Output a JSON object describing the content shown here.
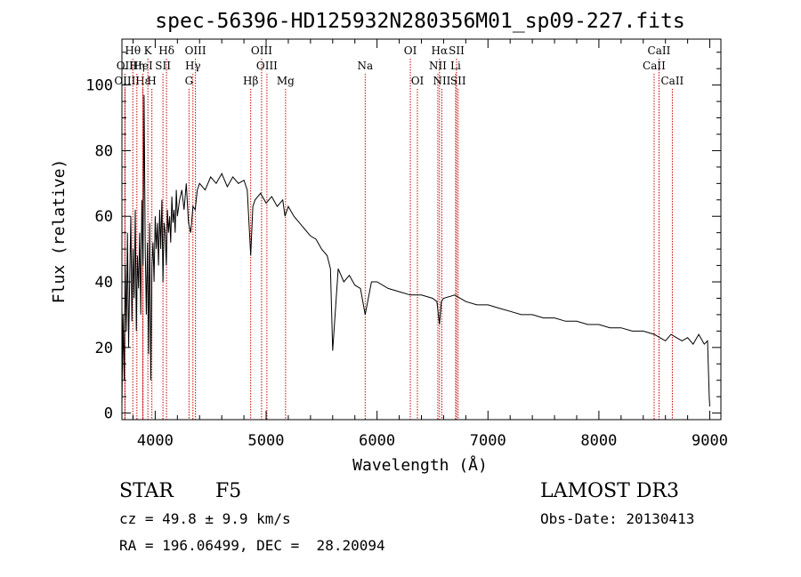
{
  "chart_data": {
    "type": "line",
    "title": "spec-56396-HD125932N280356M01_sp09-227.fits",
    "xlabel": "Wavelength (Å)",
    "ylabel": "Flux (relative)",
    "xlim": [
      3700,
      9100
    ],
    "ylim": [
      -2,
      114
    ],
    "xticks": [
      4000,
      5000,
      6000,
      7000,
      8000,
      9000
    ],
    "yticks": [
      0,
      20,
      40,
      60,
      80,
      100
    ],
    "grid": false,
    "series": [
      {
        "name": "flux",
        "color": "#000000",
        "x": [
          3700,
          3710,
          3720,
          3730,
          3740,
          3750,
          3760,
          3770,
          3780,
          3790,
          3800,
          3810,
          3820,
          3830,
          3840,
          3850,
          3860,
          3870,
          3880,
          3890,
          3900,
          3910,
          3920,
          3930,
          3940,
          3950,
          3960,
          3970,
          3980,
          3990,
          4000,
          4010,
          4020,
          4030,
          4040,
          4050,
          4060,
          4070,
          4080,
          4090,
          4100,
          4110,
          4120,
          4130,
          4140,
          4150,
          4160,
          4170,
          4180,
          4190,
          4200,
          4220,
          4240,
          4260,
          4280,
          4300,
          4320,
          4340,
          4360,
          4380,
          4400,
          4450,
          4500,
          4550,
          4600,
          4650,
          4700,
          4750,
          4800,
          4830,
          4861,
          4880,
          4900,
          4950,
          5000,
          5050,
          5100,
          5150,
          5170,
          5200,
          5250,
          5300,
          5350,
          5400,
          5450,
          5500,
          5550,
          5580,
          5600,
          5650,
          5700,
          5750,
          5800,
          5850,
          5893,
          5950,
          6000,
          6100,
          6200,
          6300,
          6400,
          6500,
          6540,
          6563,
          6580,
          6600,
          6700,
          6800,
          6900,
          7000,
          7100,
          7200,
          7300,
          7400,
          7500,
          7600,
          7700,
          7800,
          7900,
          8000,
          8100,
          8200,
          8300,
          8400,
          8500,
          8550,
          8600,
          8650,
          8700,
          8750,
          8800,
          8850,
          8900,
          8950,
          8980,
          8995,
          9000
        ],
        "values": [
          2,
          30,
          10,
          45,
          25,
          55,
          20,
          40,
          60,
          28,
          50,
          35,
          62,
          25,
          48,
          38,
          55,
          30,
          65,
          45,
          97,
          50,
          30,
          52,
          18,
          58,
          10,
          45,
          52,
          40,
          60,
          50,
          58,
          45,
          62,
          50,
          65,
          40,
          58,
          55,
          45,
          62,
          55,
          60,
          52,
          66,
          58,
          62,
          55,
          68,
          60,
          65,
          68,
          62,
          70,
          58,
          55,
          63,
          62,
          68,
          70,
          68,
          72,
          70,
          73,
          69,
          72,
          70,
          71,
          68,
          48,
          63,
          65,
          67,
          64,
          66,
          63,
          65,
          60,
          63,
          60,
          58,
          56,
          54,
          53,
          50,
          48,
          44,
          19,
          44,
          40,
          42,
          39,
          38,
          30,
          40,
          40,
          38,
          37,
          36,
          36,
          35,
          34,
          27,
          34,
          35,
          36,
          34,
          33,
          33,
          32,
          31,
          30,
          30,
          29,
          29,
          28,
          28,
          27,
          27,
          26,
          26,
          25,
          25,
          24,
          23,
          22,
          24,
          23,
          22,
          23,
          21,
          24,
          21,
          22,
          5,
          2
        ]
      }
    ],
    "line_markers": [
      {
        "label": "Hθ",
        "x": 3798,
        "row": 1
      },
      {
        "label": "OII",
        "x": 3727,
        "row": 2
      },
      {
        "label": "OIII",
        "x": 3727,
        "row": 3
      },
      {
        "label": "Hη",
        "x": 3835,
        "row": 2
      },
      {
        "label": "Hε",
        "x": 3889,
        "row": 3
      },
      {
        "label": "K",
        "x": 3934,
        "row": 1
      },
      {
        "label": "HeI",
        "x": 3889,
        "row": 2
      },
      {
        "label": "H",
        "x": 3970,
        "row": 3
      },
      {
        "label": "SII",
        "x": 4070,
        "row": 2
      },
      {
        "label": "Hδ",
        "x": 4102,
        "row": 1
      },
      {
        "label": "OIII",
        "x": 4363,
        "row": 1
      },
      {
        "label": "Hγ",
        "x": 4340,
        "row": 2
      },
      {
        "label": "G",
        "x": 4305,
        "row": 3
      },
      {
        "label": "Hβ",
        "x": 4861,
        "row": 3
      },
      {
        "label": "OIII",
        "x": 4959,
        "row": 1
      },
      {
        "label": "OIII",
        "x": 5007,
        "row": 2
      },
      {
        "label": "Mg",
        "x": 5175,
        "row": 3
      },
      {
        "label": "Na",
        "x": 5893,
        "row": 2
      },
      {
        "label": "OI",
        "x": 6300,
        "row": 1
      },
      {
        "label": "OI",
        "x": 6364,
        "row": 3
      },
      {
        "label": "Hα",
        "x": 6563,
        "row": 1
      },
      {
        "label": "NII",
        "x": 6548,
        "row": 2
      },
      {
        "label": "NII",
        "x": 6584,
        "row": 3
      },
      {
        "label": "SII",
        "x": 6717,
        "row": 1
      },
      {
        "label": "Li",
        "x": 6708,
        "row": 2
      },
      {
        "label": "SII",
        "x": 6731,
        "row": 3
      },
      {
        "label": "CaII",
        "x": 8542,
        "row": 1
      },
      {
        "label": "CaII",
        "x": 8498,
        "row": 2
      },
      {
        "label": "CaII",
        "x": 8662,
        "row": 3
      }
    ],
    "marker_color": "#c80000"
  },
  "info": {
    "obj_class": "STAR",
    "subclass": "F5",
    "survey": "LAMOST DR3",
    "cz": "cz = 49.8 ± 9.9 km/s",
    "obs_date": "Obs-Date: 20130413",
    "coords": "RA = 196.06499, DEC =  28.20094"
  }
}
